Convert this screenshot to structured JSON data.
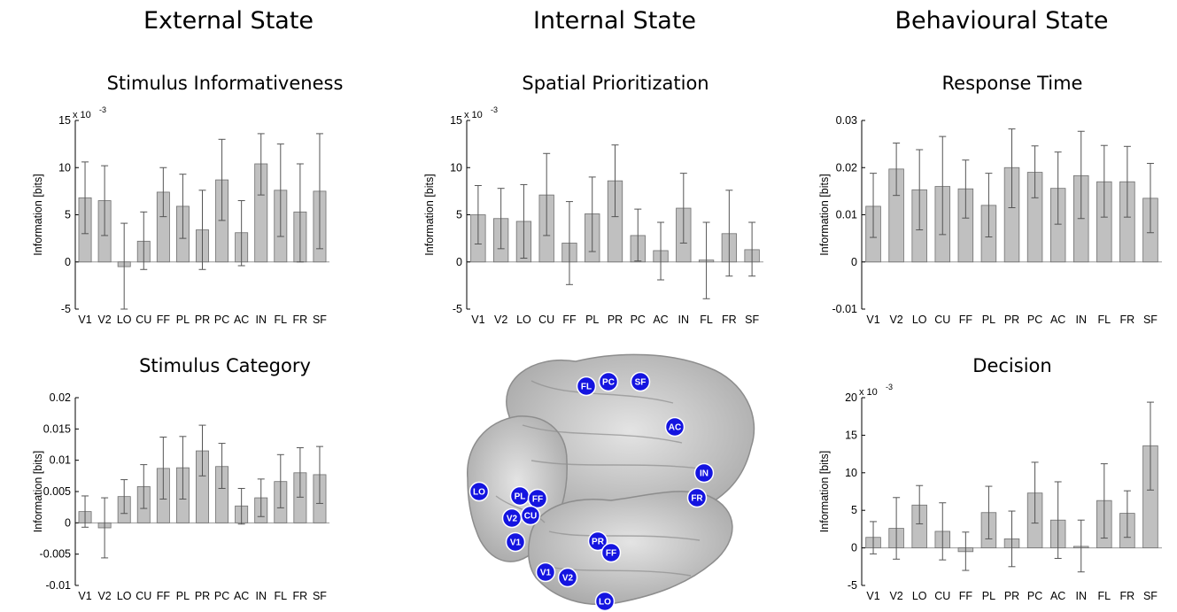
{
  "columns": [
    "External State",
    "Internal State",
    "Behavioural State"
  ],
  "regions": [
    "V1",
    "V2",
    "LO",
    "CU",
    "FF",
    "PL",
    "PR",
    "PC",
    "AC",
    "IN",
    "FL",
    "FR",
    "SF"
  ],
  "colors": {
    "bar": "#c0c0c0",
    "bar_edge": "#6f6f6f",
    "axis": "#000000",
    "region_marker": "#1414e0",
    "brain": "#b8b8b8"
  },
  "brain": {
    "markers": [
      "FL",
      "PC",
      "SF",
      "AC",
      "IN",
      "FR",
      "LO",
      "PL",
      "FF",
      "V2",
      "CU",
      "V1",
      "PR",
      "FF",
      "V1",
      "V2",
      "LO"
    ]
  },
  "chart_data": [
    {
      "type": "bar",
      "title": "Stimulus Informativeness",
      "ylabel": "Information [bits]",
      "exponent_label": "x 10",
      "exponent_power": "-3",
      "categories": [
        "V1",
        "V2",
        "LO",
        "CU",
        "FF",
        "PL",
        "PR",
        "PC",
        "AC",
        "IN",
        "FL",
        "FR",
        "SF"
      ],
      "values": [
        6.8,
        6.5,
        -0.5,
        2.2,
        7.4,
        5.9,
        3.4,
        8.7,
        3.1,
        10.4,
        7.6,
        5.3,
        7.5
      ],
      "err_low": [
        3.0,
        2.8,
        -5.0,
        -0.8,
        4.8,
        2.5,
        -0.8,
        4.4,
        -0.4,
        7.1,
        2.7,
        0.0,
        1.4
      ],
      "err_high": [
        10.6,
        10.2,
        4.1,
        5.3,
        10.0,
        9.3,
        7.6,
        13.0,
        6.5,
        13.6,
        12.5,
        10.4,
        13.6
      ],
      "ylim": [
        -5,
        15
      ],
      "yticks": [
        -5,
        0,
        5,
        10,
        15
      ],
      "ytick_labels": [
        "-5",
        "0",
        "5",
        "10",
        "15"
      ]
    },
    {
      "type": "bar",
      "title": "Spatial Prioritization",
      "ylabel": "Information [bits]",
      "exponent_label": "x 10",
      "exponent_power": "-3",
      "categories": [
        "V1",
        "V2",
        "LO",
        "CU",
        "FF",
        "PL",
        "PR",
        "PC",
        "AC",
        "IN",
        "FL",
        "FR",
        "SF"
      ],
      "values": [
        5.0,
        4.6,
        4.3,
        7.1,
        2.0,
        5.1,
        8.6,
        2.8,
        1.2,
        5.7,
        0.2,
        3.0,
        1.3
      ],
      "err_low": [
        1.9,
        1.4,
        0.4,
        2.8,
        -2.4,
        1.1,
        4.8,
        0.1,
        -1.9,
        2.0,
        -3.9,
        -1.5,
        -1.5
      ],
      "err_high": [
        8.1,
        7.8,
        8.2,
        11.5,
        6.4,
        9.0,
        12.4,
        5.6,
        4.2,
        9.4,
        4.2,
        7.6,
        4.2
      ],
      "ylim": [
        -5,
        15
      ],
      "yticks": [
        -5,
        0,
        5,
        10,
        15
      ],
      "ytick_labels": [
        "-5",
        "0",
        "5",
        "10",
        "15"
      ]
    },
    {
      "type": "bar",
      "title": "Response Time",
      "ylabel": "Information [bits]",
      "categories": [
        "V1",
        "V2",
        "LO",
        "CU",
        "FF",
        "PL",
        "PR",
        "PC",
        "AC",
        "IN",
        "FL",
        "FR",
        "SF"
      ],
      "values": [
        0.0118,
        0.0197,
        0.0153,
        0.016,
        0.0155,
        0.012,
        0.02,
        0.019,
        0.0156,
        0.0183,
        0.017,
        0.017,
        0.0135
      ],
      "err_low": [
        0.0052,
        0.0141,
        0.0068,
        0.0058,
        0.0093,
        0.0053,
        0.0115,
        0.0136,
        0.008,
        0.0092,
        0.0095,
        0.0095,
        0.0062
      ],
      "err_high": [
        0.0188,
        0.0252,
        0.0238,
        0.0266,
        0.0216,
        0.0188,
        0.0282,
        0.0246,
        0.0233,
        0.0277,
        0.0247,
        0.0245,
        0.0209
      ],
      "ylim": [
        -0.01,
        0.03
      ],
      "yticks": [
        -0.01,
        0,
        0.01,
        0.02,
        0.03
      ],
      "ytick_labels": [
        "-0.01",
        "0",
        "0.01",
        "0.02",
        "0.03"
      ]
    },
    {
      "type": "bar",
      "title": "Stimulus Category",
      "ylabel": "Information [bits]",
      "categories": [
        "V1",
        "V2",
        "LO",
        "CU",
        "FF",
        "PL",
        "PR",
        "PC",
        "AC",
        "IN",
        "FL",
        "FR",
        "SF"
      ],
      "values": [
        0.0018,
        -0.0008,
        0.0042,
        0.0058,
        0.0087,
        0.0088,
        0.0115,
        0.009,
        0.0027,
        0.004,
        0.0066,
        0.008,
        0.0077
      ],
      "err_low": [
        -0.0007,
        -0.0056,
        0.0015,
        0.0023,
        0.0038,
        0.0038,
        0.0075,
        0.0055,
        -0.0002,
        0.001,
        0.0024,
        0.0041,
        0.0031
      ],
      "err_high": [
        0.0043,
        0.004,
        0.0069,
        0.0093,
        0.0137,
        0.0138,
        0.0156,
        0.0127,
        0.0055,
        0.007,
        0.0109,
        0.012,
        0.0122
      ],
      "ylim": [
        -0.01,
        0.02
      ],
      "yticks": [
        -0.01,
        -0.005,
        0,
        0.005,
        0.01,
        0.015,
        0.02
      ],
      "ytick_labels": [
        "-0.01",
        "-0.005",
        "0",
        "0.005",
        "0.01",
        "0.015",
        "0.02"
      ]
    },
    {
      "type": "bar",
      "title": "Decision",
      "ylabel": "Information [bits]",
      "exponent_label": "x 10",
      "exponent_power": "-3",
      "categories": [
        "V1",
        "V2",
        "LO",
        "CU",
        "FF",
        "PL",
        "PR",
        "PC",
        "AC",
        "IN",
        "FL",
        "FR",
        "SF"
      ],
      "values": [
        1.4,
        2.6,
        5.7,
        2.2,
        -0.5,
        4.7,
        1.2,
        7.3,
        3.7,
        0.2,
        6.3,
        4.6,
        13.6
      ],
      "err_low": [
        -0.8,
        -1.5,
        3.2,
        -1.6,
        -3.0,
        1.2,
        -2.5,
        3.3,
        -1.4,
        -3.2,
        1.3,
        1.4,
        7.7
      ],
      "err_high": [
        3.5,
        6.7,
        8.3,
        6.0,
        2.1,
        8.2,
        4.9,
        11.4,
        8.8,
        3.7,
        11.2,
        7.6,
        19.4
      ],
      "ylim": [
        -5,
        20
      ],
      "yticks": [
        -5,
        0,
        5,
        10,
        15,
        20
      ],
      "ytick_labels": [
        "-5",
        "0",
        "5",
        "10",
        "15",
        "20"
      ]
    }
  ]
}
